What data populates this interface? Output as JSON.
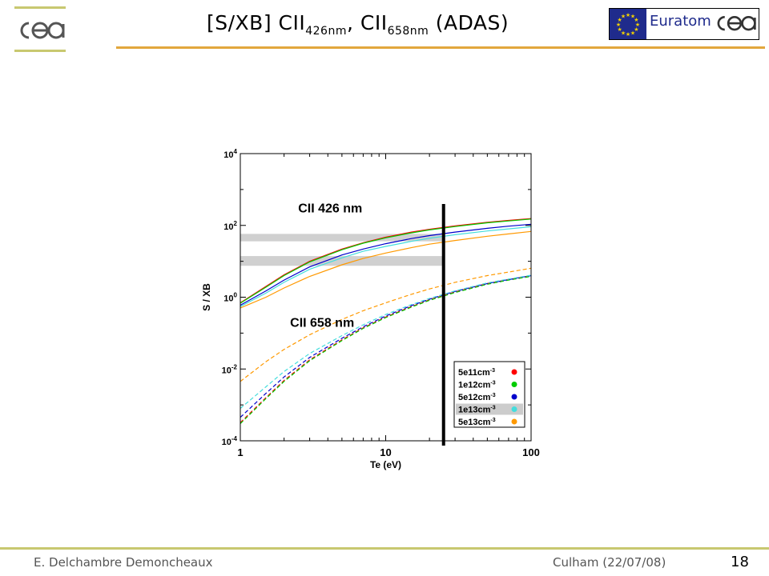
{
  "header": {
    "title_main": "[S/XB] CII",
    "title_sub1": "426nm",
    "title_mid": ", CII",
    "title_sub2": "658nm",
    "title_end": " (ADAS)",
    "euratom_label": "Euratom"
  },
  "footer": {
    "author": "E. Delchambre Demoncheaux",
    "event": "Culham (22/07/08)",
    "page": "18"
  },
  "colors": {
    "header_rule": "#e2a73d",
    "footer_rule": "#c8c870",
    "eu_blue": "#1f2b8c",
    "eu_star": "#f2d100"
  },
  "chart_data": {
    "type": "line",
    "xlabel": "Te (eV)",
    "ylabel": "S / XB",
    "xscale": "log",
    "yscale": "log",
    "xlim": [
      1,
      100
    ],
    "ylim": [
      0.0001,
      10000
    ],
    "x_ticks": [
      "1",
      "10",
      "100"
    ],
    "y_ticks": [
      {
        "base": "10",
        "exp": "4"
      },
      {
        "base": "10",
        "exp": "2"
      },
      {
        "base": "10",
        "exp": "0"
      },
      {
        "base": "10",
        "exp": "-2"
      },
      {
        "base": "10",
        "exp": "-4"
      }
    ],
    "annotations": [
      {
        "text": "CII 426 nm",
        "x": 2.5,
        "y": 230
      },
      {
        "text": "CII 658 nm",
        "x": 2.2,
        "y": 0.15
      }
    ],
    "vertical_line_x": 25,
    "shaded_bands": [
      {
        "y_low": 36,
        "y_high": 58
      },
      {
        "y_low": 7.5,
        "y_high": 14
      }
    ],
    "legend_highlight": "1e13cm",
    "x": [
      1,
      1.5,
      2,
      3,
      5,
      7,
      10,
      15,
      20,
      30,
      50,
      70,
      100
    ],
    "series": [
      {
        "name": "5e11cm",
        "exp": "-3",
        "color": "#ff0000",
        "line": "CII 426 nm",
        "values": [
          0.7,
          2.0,
          4.2,
          10.0,
          22,
          33,
          47,
          65,
          78,
          97,
          122,
          138,
          155
        ]
      },
      {
        "name": "1e12cm",
        "exp": "-3",
        "color": "#00cc00",
        "line": "CII 426 nm",
        "values": [
          0.68,
          1.9,
          4.0,
          9.6,
          21,
          32,
          45,
          62,
          75,
          93,
          118,
          133,
          150
        ]
      },
      {
        "name": "5e12cm",
        "exp": "-3",
        "color": "#0000cc",
        "line": "CII 426 nm",
        "values": [
          0.6,
          1.5,
          3.0,
          7.0,
          15,
          22,
          31,
          43,
          52,
          65,
          83,
          95,
          108
        ]
      },
      {
        "name": "1e13cm",
        "exp": "-3",
        "color": "#44dddd",
        "line": "CII 426 nm",
        "values": [
          0.55,
          1.3,
          2.6,
          6.0,
          12.5,
          19,
          26,
          36,
          44,
          55,
          70,
          80,
          92
        ]
      },
      {
        "name": "5e13cm",
        "exp": "-3",
        "color": "#ff9900",
        "line": "CII 426 nm",
        "values": [
          0.5,
          1.0,
          1.8,
          3.8,
          8.0,
          12,
          17,
          24,
          30,
          38,
          50,
          58,
          68
        ]
      },
      {
        "name": "5e11cm",
        "exp": "-3",
        "color": "#ff0000",
        "line": "CII 658 nm",
        "values": [
          0.00032,
          0.0016,
          0.0048,
          0.018,
          0.065,
          0.14,
          0.28,
          0.55,
          0.85,
          1.4,
          2.4,
          3.1,
          4.0
        ]
      },
      {
        "name": "1e12cm",
        "exp": "-3",
        "color": "#00cc00",
        "line": "CII 658 nm",
        "values": [
          0.0003,
          0.0015,
          0.0045,
          0.017,
          0.062,
          0.135,
          0.27,
          0.53,
          0.82,
          1.35,
          2.3,
          3.0,
          3.8
        ]
      },
      {
        "name": "5e12cm",
        "exp": "-3",
        "color": "#0000cc",
        "line": "CII 658 nm",
        "values": [
          0.00045,
          0.0021,
          0.006,
          0.021,
          0.072,
          0.15,
          0.3,
          0.58,
          0.88,
          1.45,
          2.4,
          3.1,
          4.0
        ]
      },
      {
        "name": "1e13cm",
        "exp": "-3",
        "color": "#44dddd",
        "line": "CII 658 nm",
        "values": [
          0.0008,
          0.0032,
          0.0085,
          0.027,
          0.085,
          0.17,
          0.33,
          0.62,
          0.92,
          1.5,
          2.5,
          3.2,
          4.1
        ]
      },
      {
        "name": "5e13cm",
        "exp": "-3",
        "color": "#ff9900",
        "line": "CII 658 nm",
        "values": [
          0.0045,
          0.016,
          0.035,
          0.09,
          0.24,
          0.42,
          0.7,
          1.2,
          1.7,
          2.6,
          4.0,
          5.0,
          6.4
        ]
      }
    ]
  }
}
